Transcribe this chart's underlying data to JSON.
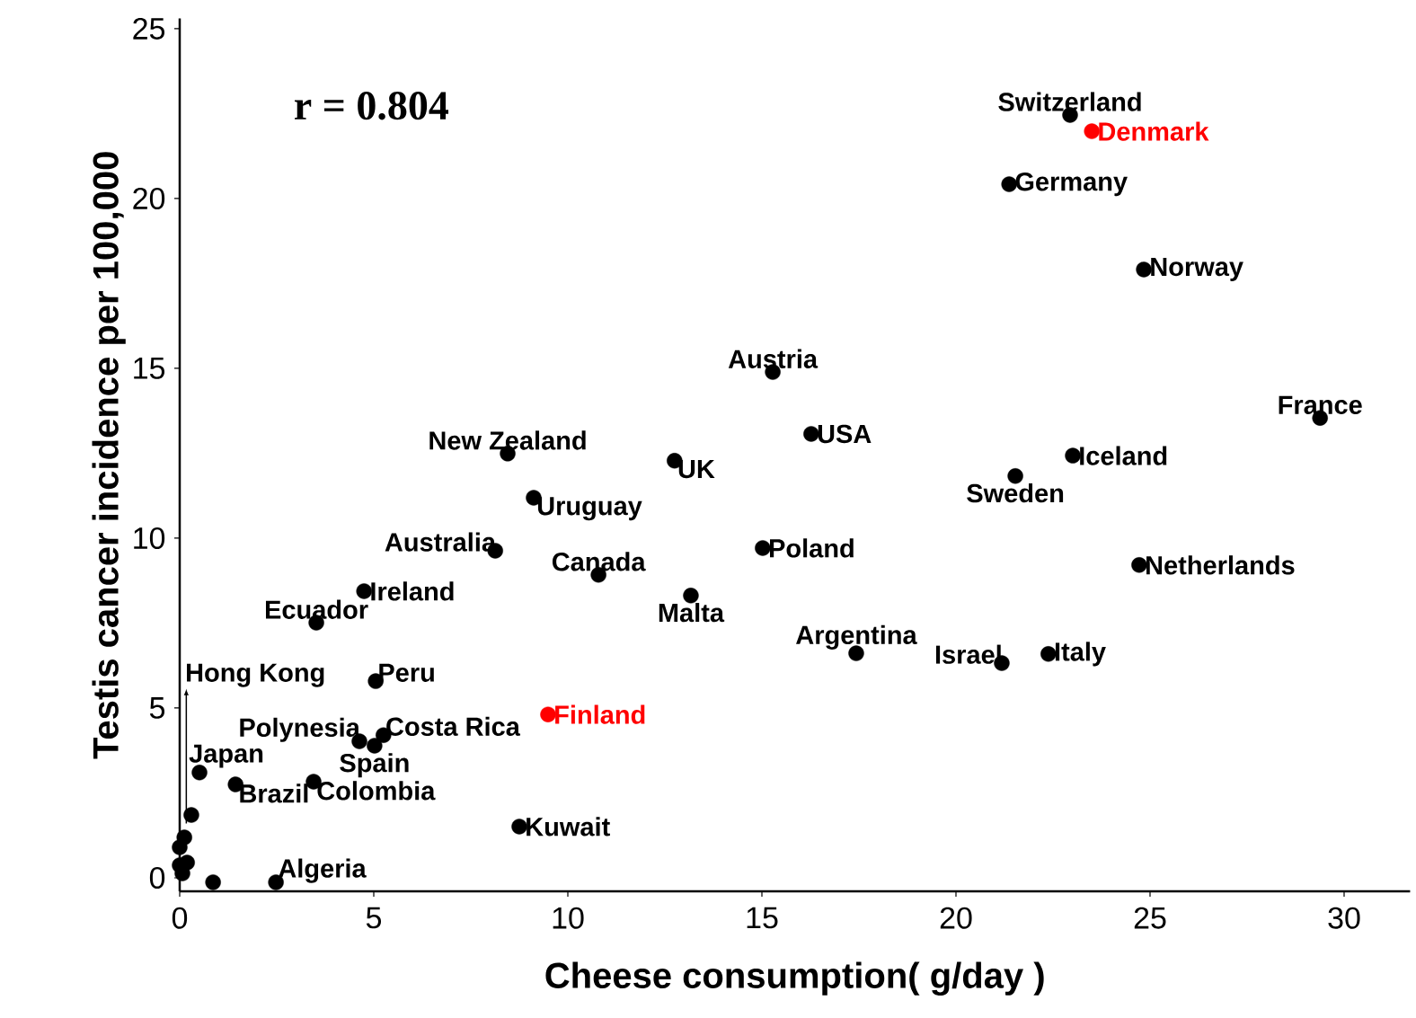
{
  "chart_data": {
    "type": "scatter",
    "xlabel": "Cheese consumption( g/day )",
    "ylabel": "Testis cancer incidence per 100,000",
    "xlim": [
      0,
      31.7
    ],
    "ylim": [
      -0.4,
      25.3
    ],
    "xticks": [
      0,
      5,
      10,
      15,
      20,
      25,
      30
    ],
    "yticks": [
      0,
      5,
      10,
      15,
      20,
      25
    ],
    "marker": "circle",
    "annotations": [
      "r = 0.804",
      {
        "text": "Hong Kong",
        "x": 0.17,
        "y": 1.6
      }
    ],
    "series": [
      {
        "name": "Switzerland",
        "color": "#000000",
        "x": [
          22.94
        ],
        "values": [
          22.46
        ]
      },
      {
        "name": "Denmark",
        "color": "#ff0000",
        "x": [
          23.5
        ],
        "values": [
          21.98
        ]
      },
      {
        "name": "Germany",
        "color": "#000000",
        "x": [
          21.37
        ],
        "values": [
          20.42
        ]
      },
      {
        "name": "Norway",
        "color": "#000000",
        "x": [
          24.84
        ],
        "values": [
          17.91
        ]
      },
      {
        "name": "Austria",
        "color": "#000000",
        "x": [
          15.28
        ],
        "values": [
          14.89
        ]
      },
      {
        "name": "France",
        "color": "#000000",
        "x": [
          29.38
        ],
        "values": [
          13.54
        ]
      },
      {
        "name": "New Zealand",
        "color": "#000000",
        "x": [
          8.45
        ],
        "values": [
          12.49
        ]
      },
      {
        "name": "USA",
        "color": "#000000",
        "x": [
          16.27
        ],
        "values": [
          13.07
        ]
      },
      {
        "name": "UK",
        "color": "#000000",
        "x": [
          12.75
        ],
        "values": [
          12.28
        ]
      },
      {
        "name": "Iceland",
        "color": "#000000",
        "x": [
          23.01
        ],
        "values": [
          12.43
        ]
      },
      {
        "name": "Sweden",
        "color": "#000000",
        "x": [
          21.53
        ],
        "values": [
          11.83
        ]
      },
      {
        "name": "Uruguay",
        "color": "#000000",
        "x": [
          9.12
        ],
        "values": [
          11.19
        ]
      },
      {
        "name": "Australia",
        "color": "#000000",
        "x": [
          8.13
        ],
        "values": [
          9.63
        ]
      },
      {
        "name": "Poland",
        "color": "#000000",
        "x": [
          15.02
        ],
        "values": [
          9.71
        ]
      },
      {
        "name": "Canada",
        "color": "#000000",
        "x": [
          10.79
        ],
        "values": [
          8.92
        ]
      },
      {
        "name": "Netherlands",
        "color": "#000000",
        "x": [
          24.72
        ],
        "values": [
          9.21
        ]
      },
      {
        "name": "Ireland",
        "color": "#000000",
        "x": [
          4.75
        ],
        "values": [
          8.44
        ]
      },
      {
        "name": "Malta",
        "color": "#000000",
        "x": [
          13.17
        ],
        "values": [
          8.31
        ]
      },
      {
        "name": "Ecuador",
        "color": "#000000",
        "x": [
          3.52
        ],
        "values": [
          7.51
        ]
      },
      {
        "name": "Argentina",
        "color": "#000000",
        "x": [
          17.43
        ],
        "values": [
          6.61
        ]
      },
      {
        "name": "Israel",
        "color": "#000000",
        "x": [
          21.18
        ],
        "values": [
          6.32
        ]
      },
      {
        "name": "Italy",
        "color": "#000000",
        "x": [
          22.38
        ],
        "values": [
          6.59
        ]
      },
      {
        "name": "Peru",
        "color": "#000000",
        "x": [
          5.05
        ],
        "values": [
          5.79
        ]
      },
      {
        "name": "Finland",
        "color": "#ff0000",
        "x": [
          9.49
        ],
        "values": [
          4.81
        ]
      },
      {
        "name": "Polynesia",
        "color": "#000000",
        "x": [
          4.63
        ],
        "values": [
          4.02
        ]
      },
      {
        "name": "Costa Rica",
        "color": "#000000",
        "x": [
          5.25
        ],
        "values": [
          4.2
        ]
      },
      {
        "name": "Spain",
        "color": "#000000",
        "x": [
          5.02
        ],
        "values": [
          3.89
        ]
      },
      {
        "name": "Japan",
        "color": "#000000",
        "x": [
          0.51
        ],
        "values": [
          3.1
        ]
      },
      {
        "name": "Brazil",
        "color": "#000000",
        "x": [
          1.44
        ],
        "values": [
          2.75
        ]
      },
      {
        "name": "Colombia",
        "color": "#000000",
        "x": [
          3.45
        ],
        "values": [
          2.83
        ]
      },
      {
        "name": "Kuwait",
        "color": "#000000",
        "x": [
          8.75
        ],
        "values": [
          1.51
        ]
      },
      {
        "name": "Algeria",
        "color": "#000000",
        "x": [
          2.48
        ],
        "values": [
          -0.13
        ]
      },
      {
        "color": "#000000",
        "x": [
          0.86,
          0.3,
          0.12,
          0.0,
          0.19,
          0.0,
          0.07
        ],
        "values": [
          -0.13,
          1.85,
          1.19,
          0.9,
          0.45,
          0.37,
          0.13
        ]
      }
    ]
  }
}
